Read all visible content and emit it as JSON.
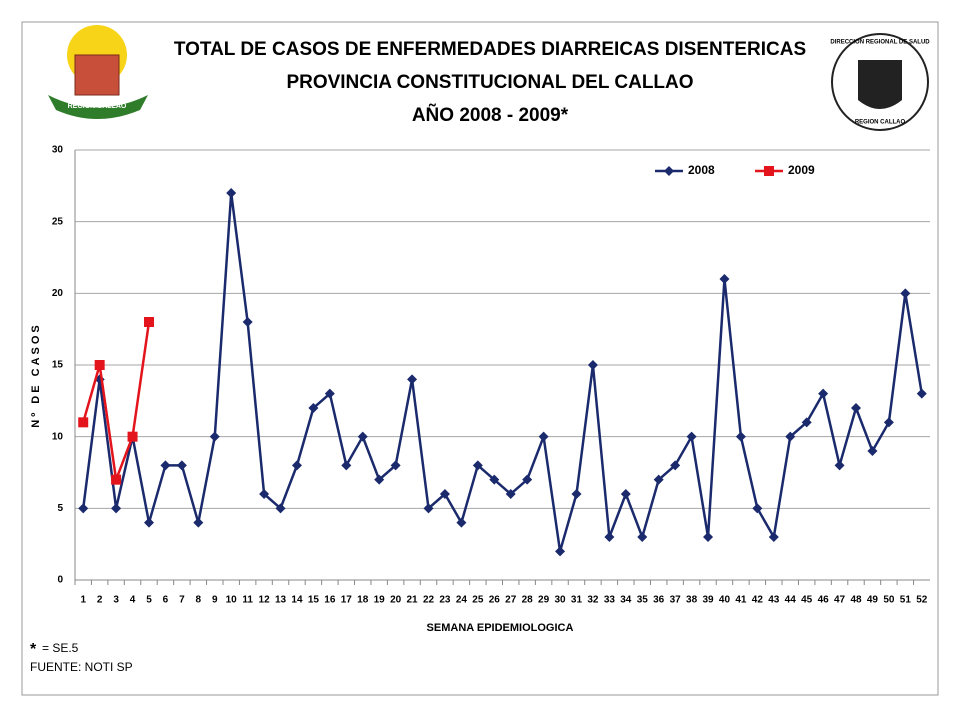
{
  "chart_data": {
    "type": "line",
    "title": [
      "TOTAL DE CASOS DE ENFERMEDADES DIARREICAS  DISENTERICAS",
      "PROVINCIA CONSTITUCIONAL DEL CALLAO",
      "AÑO 2008 - 2009*"
    ],
    "y_label": "Nº DE CASOS",
    "x_label": "SEMANA EPIDEMIOLOGICA",
    "note_mark": "*",
    "note": "= SE.5",
    "source": "FUENTE: NOTI SP",
    "logo_left": "REGION CALLAO",
    "logo_right": [
      "DIRECCION REGIONAL DE SALUD",
      "REGION CALLAO"
    ],
    "categories": [
      "1",
      "2",
      "3",
      "4",
      "5",
      "6",
      "7",
      "8",
      "9",
      "10",
      "11",
      "12",
      "13",
      "14",
      "15",
      "16",
      "17",
      "18",
      "19",
      "20",
      "21",
      "22",
      "23",
      "24",
      "25",
      "26",
      "27",
      "28",
      "29",
      "30",
      "31",
      "32",
      "33",
      "34",
      "35",
      "36",
      "37",
      "38",
      "39",
      "40",
      "41",
      "42",
      "43",
      "44",
      "45",
      "46",
      "47",
      "48",
      "49",
      "50",
      "51",
      "52"
    ],
    "series": [
      {
        "name": "2008",
        "color": "#1a2a6c",
        "marker": "diamond",
        "values": [
          5,
          14,
          5,
          10,
          4,
          8,
          8,
          4,
          10,
          27,
          18,
          6,
          5,
          8,
          12,
          13,
          8,
          10,
          7,
          8,
          14,
          5,
          6,
          4,
          8,
          7,
          6,
          7,
          10,
          2,
          6,
          15,
          3,
          6,
          3,
          7,
          8,
          10,
          3,
          21,
          10,
          5,
          3,
          10,
          11,
          13,
          8,
          12,
          9,
          11,
          20,
          13
        ]
      },
      {
        "name": "2009",
        "color": "#e3141c",
        "marker": "square",
        "values": [
          11,
          15,
          7,
          10,
          18,
          null,
          null,
          null,
          null,
          null,
          null,
          null,
          null,
          null,
          null,
          null,
          null,
          null,
          null,
          null,
          null,
          null,
          null,
          null,
          null,
          null,
          null,
          null,
          null,
          null,
          null,
          null,
          null,
          null,
          null,
          null,
          null,
          null,
          null,
          null,
          null,
          null,
          null,
          null,
          null,
          null,
          null,
          null,
          null,
          null,
          null,
          null
        ]
      }
    ],
    "ylim": [
      0,
      30
    ],
    "yticks": [
      0,
      5,
      10,
      15,
      20,
      25,
      30
    ],
    "grid": true,
    "legend": "upper right"
  }
}
